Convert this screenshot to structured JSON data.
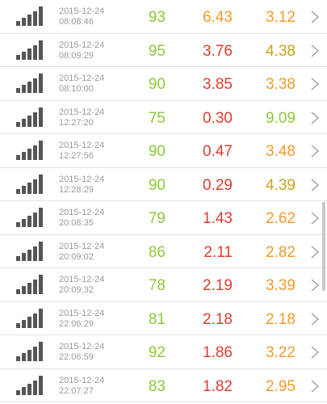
{
  "colors": {
    "green": "#8cc93a",
    "orange": "#f39a2c",
    "red": "#dd3d2f",
    "signal": "#555555",
    "timestamp": "#9a9a9a",
    "divider": "#e2e2e2"
  },
  "rows": [
    {
      "date": "2015-12-24",
      "time": "08:08:46",
      "score": "93",
      "val1": "6.43",
      "val1_color": "orange",
      "val2": "3.12",
      "val2_color": "orange"
    },
    {
      "date": "2015-12-24",
      "time": "08:09:29",
      "score": "95",
      "val1": "3.76",
      "val1_color": "red",
      "val2": "4.38",
      "val2_color": "olive"
    },
    {
      "date": "2015-12-24",
      "time": "08:10:00",
      "score": "90",
      "val1": "3.85",
      "val1_color": "red",
      "val2": "3.38",
      "val2_color": "orange"
    },
    {
      "date": "2015-12-24",
      "time": "12:27:20",
      "score": "75",
      "val1": "0.30",
      "val1_color": "red",
      "val2": "9.09",
      "val2_color": "green"
    },
    {
      "date": "2015-12-24",
      "time": "12:27:56",
      "score": "90",
      "val1": "0.47",
      "val1_color": "red",
      "val2": "3.48",
      "val2_color": "orange"
    },
    {
      "date": "2015-12-24",
      "time": "12:28:29",
      "score": "90",
      "val1": "0.29",
      "val1_color": "red",
      "val2": "4.39",
      "val2_color": "olive"
    },
    {
      "date": "2015-12-24",
      "time": "20:08:35",
      "score": "79",
      "val1": "1.43",
      "val1_color": "red",
      "val2": "2.62",
      "val2_color": "orange"
    },
    {
      "date": "2015-12-24",
      "time": "20:09:02",
      "score": "86",
      "val1": "2.11",
      "val1_color": "red",
      "val2": "2.82",
      "val2_color": "orange"
    },
    {
      "date": "2015-12-24",
      "time": "20:09:32",
      "score": "78",
      "val1": "2.19",
      "val1_color": "red",
      "val2": "3.39",
      "val2_color": "orange"
    },
    {
      "date": "2015-12-24",
      "time": "22:06:29",
      "score": "81",
      "val1": "2.18",
      "val1_color": "red",
      "val2": "2.18",
      "val2_color": "orange"
    },
    {
      "date": "2015-12-24",
      "time": "22:06:59",
      "score": "92",
      "val1": "1.86",
      "val1_color": "red",
      "val2": "3.22",
      "val2_color": "orange"
    },
    {
      "date": "2015-12-24",
      "time": "22:07:27",
      "score": "83",
      "val1": "1.82",
      "val1_color": "red",
      "val2": "2.95",
      "val2_color": "orange"
    }
  ],
  "icons": {
    "signal": "signal-strength-icon",
    "chevron": "chevron-right-icon"
  }
}
